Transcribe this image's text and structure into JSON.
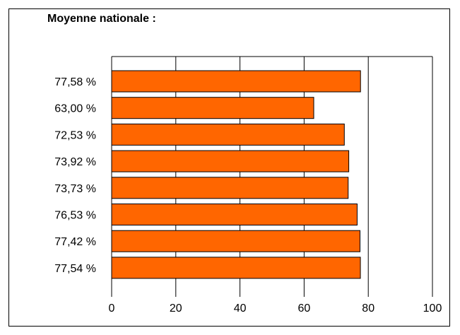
{
  "chart_data": {
    "type": "bar",
    "orientation": "horizontal",
    "title": "Moyenne nationale :",
    "categories": [
      "77,58 %",
      "63,00 %",
      "72,53 %",
      "73,92 %",
      "73,73 %",
      "76,53 %",
      "77,42 %",
      "77,54 %"
    ],
    "series": [
      {
        "values": [
          77.58,
          63.0,
          72.53,
          73.92,
          73.73,
          76.53,
          77.42,
          77.54
        ]
      }
    ],
    "xlim": [
      0,
      100
    ],
    "xticks": [
      "0",
      "20",
      "40",
      "60",
      "80",
      "100"
    ],
    "xlabel": "",
    "ylabel": "",
    "grid": "vertical",
    "legend": "none",
    "colors": {
      "bar": "#FF6600",
      "bar_edge": "#000000",
      "grid": "#000000"
    }
  }
}
